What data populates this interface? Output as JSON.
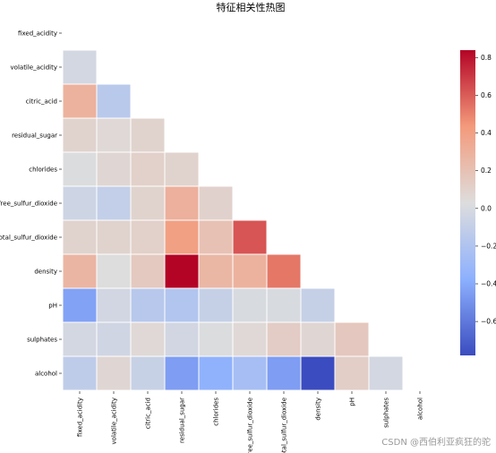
{
  "chart_data": {
    "type": "heatmap",
    "title": "特征相关性热图",
    "labels": [
      "fixed_acidity",
      "volatile_acidity",
      "citric_acid",
      "residual_sugar",
      "chlorides",
      "free_sulfur_dioxide",
      "total_sulfur_dioxide",
      "density",
      "pH",
      "sulphates",
      "alcohol"
    ],
    "mask": "upper-triangle including diagonal",
    "matrix": [
      [
        null,
        null,
        null,
        null,
        null,
        null,
        null,
        null,
        null,
        null,
        null
      ],
      [
        -0.02,
        null,
        null,
        null,
        null,
        null,
        null,
        null,
        null,
        null,
        null
      ],
      [
        0.29,
        -0.15,
        null,
        null,
        null,
        null,
        null,
        null,
        null,
        null,
        null
      ],
      [
        0.09,
        0.06,
        0.09,
        null,
        null,
        null,
        null,
        null,
        null,
        null,
        null
      ],
      [
        0.02,
        0.07,
        0.11,
        0.09,
        null,
        null,
        null,
        null,
        null,
        null,
        null
      ],
      [
        -0.05,
        -0.1,
        0.09,
        0.3,
        0.1,
        null,
        null,
        null,
        null,
        null,
        null
      ],
      [
        0.09,
        0.09,
        0.11,
        0.4,
        0.2,
        0.62,
        null,
        null,
        null,
        null,
        null
      ],
      [
        0.27,
        0.03,
        0.15,
        0.84,
        0.26,
        0.29,
        0.53,
        null,
        null,
        null,
        null
      ],
      [
        -0.43,
        -0.03,
        -0.16,
        -0.19,
        -0.09,
        0.0,
        0.0,
        -0.09,
        null,
        null,
        null
      ],
      [
        -0.02,
        -0.04,
        0.06,
        -0.03,
        0.02,
        0.06,
        0.13,
        0.07,
        0.16,
        null,
        null
      ],
      [
        -0.12,
        0.07,
        -0.08,
        -0.45,
        -0.36,
        -0.25,
        -0.45,
        -0.78,
        0.12,
        -0.02,
        null
      ]
    ],
    "colorbar": {
      "min": -0.78,
      "max": 0.84,
      "ticks": [
        -0.6,
        -0.4,
        -0.2,
        0.0,
        0.2,
        0.4,
        0.6,
        0.8
      ],
      "tick_labels": [
        "−0.6",
        "−0.4",
        "−0.2",
        "0.0",
        "0.2",
        "0.4",
        "0.6",
        "0.8"
      ],
      "colormap": "coolwarm"
    }
  },
  "watermark": "CSDN @西伯利亚疯狂的驼",
  "colors": {
    "cell_border": "#ffffff"
  }
}
